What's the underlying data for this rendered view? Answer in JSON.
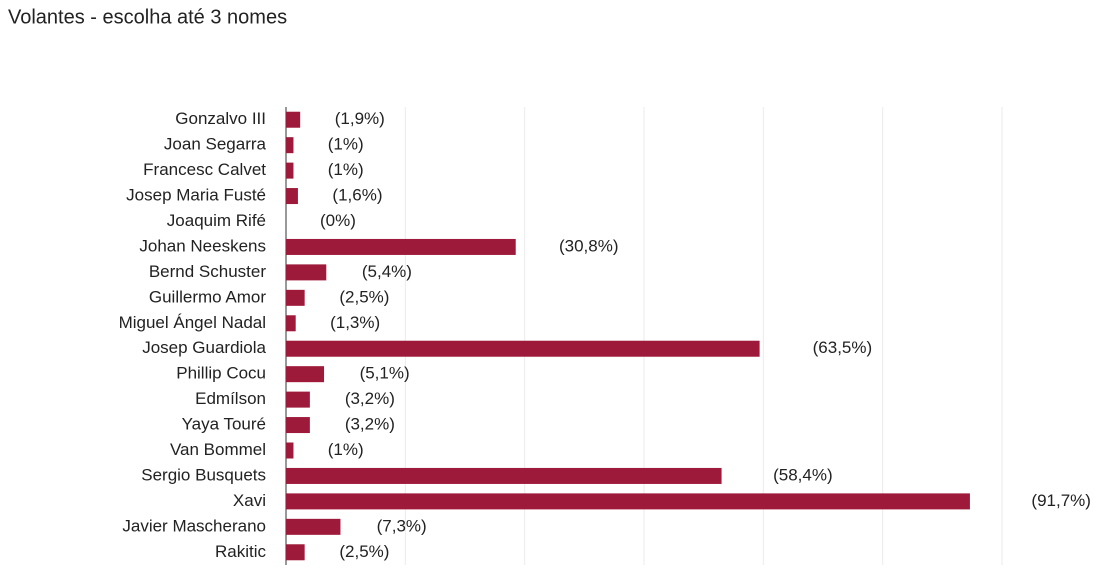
{
  "chart_data": {
    "type": "hbar",
    "title": "Volantes - escolha até 3 nomes",
    "categories": [
      "Gonzalvo III",
      "Joan Segarra",
      "Francesc Calvet",
      "Josep Maria Fusté",
      "Joaquim Rifé",
      "Johan Neeskens",
      "Bernd Schuster",
      "Guillermo Amor",
      "Miguel Ángel Nadal",
      "Josep Guardiola",
      "Phillip Cocu",
      "Edmílson",
      "Yaya Touré",
      "Van Bommel",
      "Sergio Busquets",
      "Xavi",
      "Javier Mascherano",
      "Rakitic"
    ],
    "values": [
      1.9,
      1,
      1,
      1.6,
      0,
      30.8,
      5.4,
      2.5,
      1.3,
      63.5,
      5.1,
      3.2,
      3.2,
      1,
      58.4,
      91.7,
      7.3,
      2.5
    ],
    "value_labels": [
      "(1,9%)",
      "(1%)",
      "(1%)",
      "(1,6%)",
      "(0%)",
      "(30,8%)",
      "(5,4%)",
      "(2,5%)",
      "(1,3%)",
      "(63,5%)",
      "(5,1%)",
      "(3,2%)",
      "(3,2%)",
      "(1%)",
      "(58,4%)",
      "(91,7%)",
      "(7,3%)",
      "(2,5%)"
    ],
    "color": "#9e1a3a",
    "xlim": [
      0,
      96
    ],
    "xticks": [
      0,
      16,
      32,
      48,
      64,
      80,
      96
    ],
    "grid": true
  }
}
